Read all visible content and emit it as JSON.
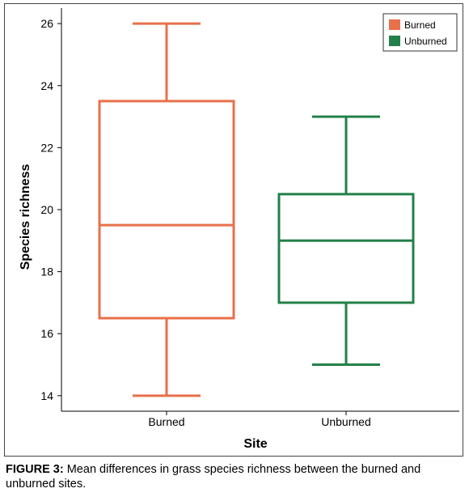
{
  "chart_data": {
    "type": "boxplot",
    "xlabel": "Site",
    "ylabel": "Species richness",
    "ylim": [
      13.5,
      26.5
    ],
    "yticks": [
      14,
      16,
      18,
      20,
      22,
      24,
      26
    ],
    "grid": false,
    "legend_position": "top-right",
    "categories": [
      "Burned",
      "Unburned"
    ],
    "series": [
      {
        "name": "Burned",
        "color": "#e8704a",
        "min": 14,
        "q1": 16.5,
        "median": 19.5,
        "q3": 23.5,
        "max": 26
      },
      {
        "name": "Unburned",
        "color": "#238049",
        "min": 15,
        "q1": 17,
        "median": 19,
        "q3": 20.5,
        "max": 23
      }
    ]
  },
  "caption": {
    "label": "FIGURE 3:",
    "text": " Mean differences in grass species richness between the burned and unburned sites."
  }
}
